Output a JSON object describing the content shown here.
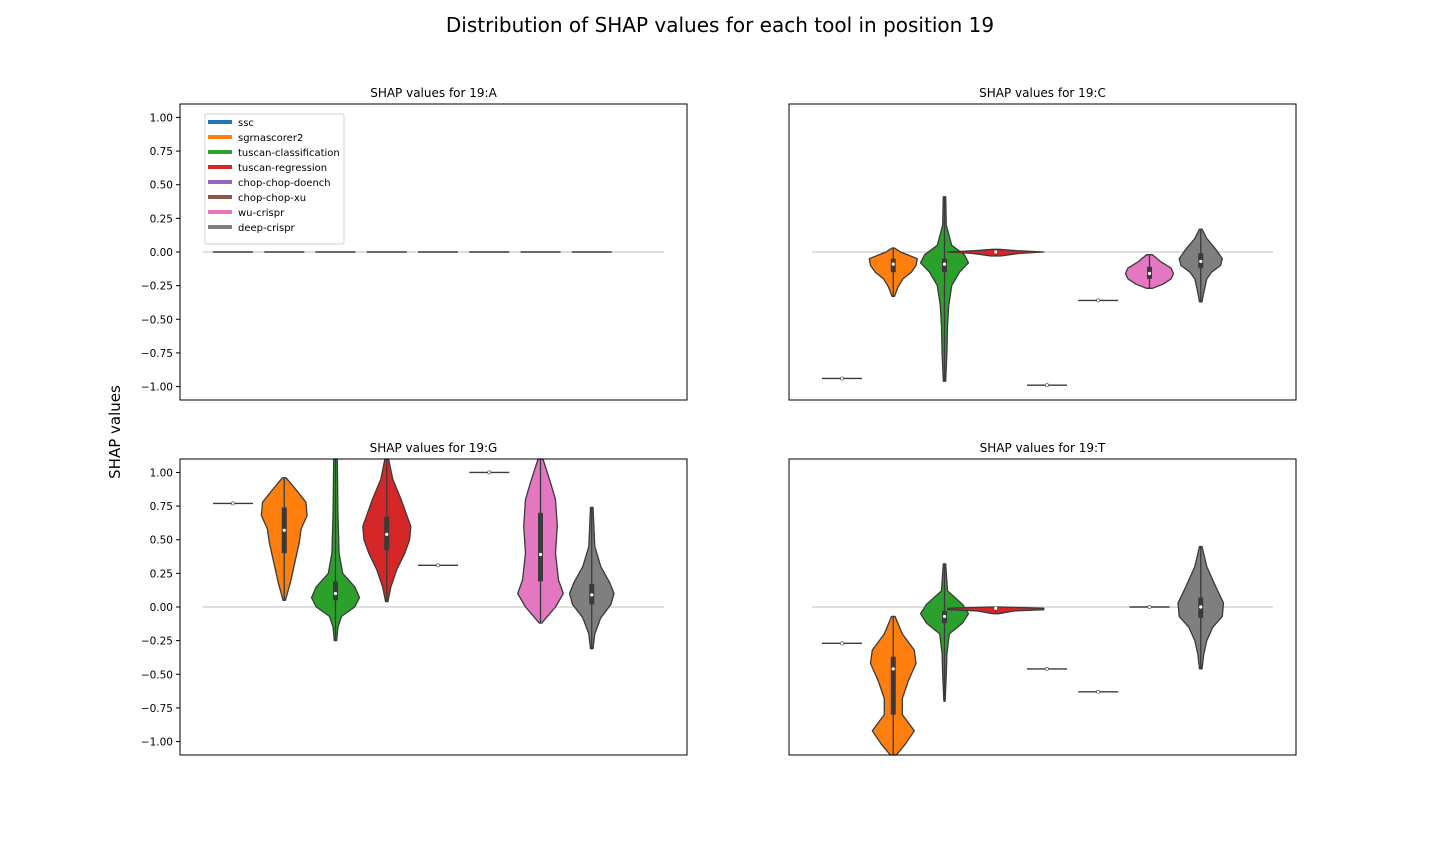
{
  "chart_data": {
    "type": "violin",
    "title": "Distribution of SHAP values for each tool in position 19",
    "ylabel": "SHAP values",
    "ylim": [
      -1.1,
      1.1
    ],
    "yticks": [
      1.0,
      0.75,
      0.5,
      0.25,
      0.0,
      -0.25,
      -0.5,
      -0.75,
      -1.0
    ],
    "ytick_labels": [
      "1.00",
      "0.75",
      "0.50",
      "0.25",
      "0.00",
      "−0.25",
      "−0.50",
      "−0.75",
      "−1.00"
    ],
    "grid": false,
    "legend": {
      "location": "upper-left of first panel",
      "entries": [
        {
          "name": "ssc",
          "color": "#1f77b4"
        },
        {
          "name": "sgrnascorer2",
          "color": "#ff7f0e"
        },
        {
          "name": "tuscan-classification",
          "color": "#2ca02c"
        },
        {
          "name": "tuscan-regression",
          "color": "#d62728"
        },
        {
          "name": "chop-chop-doench",
          "color": "#9467bd"
        },
        {
          "name": "chop-chop-xu",
          "color": "#8c564b"
        },
        {
          "name": "wu-crispr",
          "color": "#e377c2"
        },
        {
          "name": "deep-crispr",
          "color": "#7f7f7f"
        }
      ]
    },
    "panels": [
      {
        "title": "SHAP values for 19:A",
        "show_yticks": true,
        "violins": [
          {
            "tool": "ssc",
            "median": 0.0,
            "q1": 0.0,
            "q3": 0.0,
            "min": 0.0,
            "max": 0.0,
            "shape": []
          },
          {
            "tool": "sgrnascorer2",
            "median": 0.0,
            "q1": 0.0,
            "q3": 0.0,
            "min": 0.0,
            "max": 0.0,
            "shape": []
          },
          {
            "tool": "tuscan-classification",
            "median": 0.0,
            "q1": 0.0,
            "q3": 0.0,
            "min": 0.0,
            "max": 0.0,
            "shape": []
          },
          {
            "tool": "tuscan-regression",
            "median": 0.0,
            "q1": 0.0,
            "q3": 0.0,
            "min": 0.0,
            "max": 0.0,
            "shape": []
          },
          {
            "tool": "chop-chop-doench",
            "median": 0.0,
            "q1": 0.0,
            "q3": 0.0,
            "min": 0.0,
            "max": 0.0,
            "shape": []
          },
          {
            "tool": "chop-chop-xu",
            "median": 0.0,
            "q1": 0.0,
            "q3": 0.0,
            "min": 0.0,
            "max": 0.0,
            "shape": []
          },
          {
            "tool": "wu-crispr",
            "median": 0.0,
            "q1": 0.0,
            "q3": 0.0,
            "min": 0.0,
            "max": 0.0,
            "shape": []
          },
          {
            "tool": "deep-crispr",
            "median": 0.0,
            "q1": 0.0,
            "q3": 0.0,
            "min": 0.0,
            "max": 0.0,
            "shape": []
          }
        ]
      },
      {
        "title": "SHAP values for 19:C",
        "show_yticks": false,
        "violins": [
          {
            "tool": "ssc",
            "median": -0.94,
            "q1": -0.94,
            "q3": -0.94,
            "min": -0.94,
            "max": -0.94,
            "shape": []
          },
          {
            "tool": "sgrnascorer2",
            "median": -0.09,
            "q1": -0.15,
            "q3": -0.05,
            "min": -0.33,
            "max": 0.03,
            "shape": [
              [
                0.03,
                0.02
              ],
              [
                0.0,
                0.12
              ],
              [
                -0.05,
                0.4
              ],
              [
                -0.1,
                0.38
              ],
              [
                -0.15,
                0.3
              ],
              [
                -0.2,
                0.16
              ],
              [
                -0.26,
                0.08
              ],
              [
                -0.33,
                0.02
              ]
            ]
          },
          {
            "tool": "tuscan-classification",
            "median": -0.09,
            "q1": -0.15,
            "q3": -0.05,
            "min": -0.96,
            "max": 0.41,
            "shape": [
              [
                0.41,
                0.02
              ],
              [
                0.2,
                0.03
              ],
              [
                0.05,
                0.12
              ],
              [
                -0.02,
                0.33
              ],
              [
                -0.08,
                0.4
              ],
              [
                -0.15,
                0.25
              ],
              [
                -0.25,
                0.12
              ],
              [
                -0.4,
                0.07
              ],
              [
                -0.55,
                0.05
              ],
              [
                -0.75,
                0.04
              ],
              [
                -0.96,
                0.02
              ]
            ]
          },
          {
            "tool": "tuscan-regression",
            "median": 0.0,
            "q1": -0.01,
            "q3": 0.01,
            "min": -0.03,
            "max": 0.02,
            "shape": [
              [
                0.02,
                0.05
              ],
              [
                0.01,
                0.35
              ],
              [
                0.0,
                0.8
              ],
              [
                -0.01,
                0.4
              ],
              [
                -0.03,
                0.08
              ]
            ]
          },
          {
            "tool": "chop-chop-doench",
            "median": -0.99,
            "q1": -0.99,
            "q3": -0.99,
            "min": -0.99,
            "max": -0.99,
            "shape": []
          },
          {
            "tool": "chop-chop-xu",
            "median": -0.36,
            "q1": -0.36,
            "q3": -0.36,
            "min": -0.36,
            "max": -0.36,
            "shape": []
          },
          {
            "tool": "wu-crispr",
            "median": -0.16,
            "q1": -0.2,
            "q3": -0.11,
            "min": -0.27,
            "max": -0.02,
            "shape": [
              [
                -0.02,
                0.05
              ],
              [
                -0.07,
                0.18
              ],
              [
                -0.12,
                0.36
              ],
              [
                -0.16,
                0.4
              ],
              [
                -0.2,
                0.36
              ],
              [
                -0.24,
                0.22
              ],
              [
                -0.27,
                0.05
              ]
            ]
          },
          {
            "tool": "deep-crispr",
            "median": -0.07,
            "q1": -0.12,
            "q3": -0.01,
            "min": -0.37,
            "max": 0.17,
            "shape": [
              [
                0.17,
                0.02
              ],
              [
                0.1,
                0.1
              ],
              [
                0.02,
                0.25
              ],
              [
                -0.05,
                0.36
              ],
              [
                -0.1,
                0.33
              ],
              [
                -0.15,
                0.18
              ],
              [
                -0.2,
                0.1
              ],
              [
                -0.3,
                0.05
              ],
              [
                -0.37,
                0.02
              ]
            ]
          }
        ]
      },
      {
        "title": "SHAP values for 19:G",
        "show_yticks": true,
        "violins": [
          {
            "tool": "ssc",
            "median": 0.77,
            "q1": 0.77,
            "q3": 0.77,
            "min": 0.77,
            "max": 0.77,
            "shape": []
          },
          {
            "tool": "sgrnascorer2",
            "median": 0.57,
            "q1": 0.4,
            "q3": 0.74,
            "min": 0.05,
            "max": 0.96,
            "shape": [
              [
                0.96,
                0.03
              ],
              [
                0.88,
                0.18
              ],
              [
                0.78,
                0.36
              ],
              [
                0.68,
                0.38
              ],
              [
                0.58,
                0.28
              ],
              [
                0.48,
                0.25
              ],
              [
                0.38,
                0.2
              ],
              [
                0.28,
                0.15
              ],
              [
                0.18,
                0.1
              ],
              [
                0.05,
                0.02
              ]
            ]
          },
          {
            "tool": "tuscan-classification",
            "median": 0.1,
            "q1": 0.05,
            "q3": 0.19,
            "min": -0.25,
            "max": 1.1,
            "shape": [
              [
                1.1,
                0.03
              ],
              [
                0.7,
                0.04
              ],
              [
                0.4,
                0.06
              ],
              [
                0.25,
                0.12
              ],
              [
                0.15,
                0.32
              ],
              [
                0.07,
                0.4
              ],
              [
                0.0,
                0.32
              ],
              [
                -0.07,
                0.1
              ],
              [
                -0.15,
                0.04
              ],
              [
                -0.25,
                0.02
              ]
            ]
          },
          {
            "tool": "tuscan-regression",
            "median": 0.54,
            "q1": 0.42,
            "q3": 0.67,
            "min": 0.04,
            "max": 1.1,
            "shape": [
              [
                1.1,
                0.03
              ],
              [
                0.95,
                0.1
              ],
              [
                0.8,
                0.24
              ],
              [
                0.7,
                0.32
              ],
              [
                0.6,
                0.4
              ],
              [
                0.5,
                0.38
              ],
              [
                0.4,
                0.3
              ],
              [
                0.28,
                0.17
              ],
              [
                0.15,
                0.07
              ],
              [
                0.04,
                0.02
              ]
            ]
          },
          {
            "tool": "chop-chop-doench",
            "median": 0.31,
            "q1": 0.31,
            "q3": 0.31,
            "min": 0.31,
            "max": 0.31,
            "shape": []
          },
          {
            "tool": "chop-chop-xu",
            "median": 1.0,
            "q1": 1.0,
            "q3": 1.0,
            "min": 1.0,
            "max": 1.0,
            "shape": []
          },
          {
            "tool": "wu-crispr",
            "median": 0.39,
            "q1": 0.19,
            "q3": 0.7,
            "min": -0.12,
            "max": 1.1,
            "shape": [
              [
                1.1,
                0.04
              ],
              [
                0.95,
                0.15
              ],
              [
                0.8,
                0.25
              ],
              [
                0.6,
                0.28
              ],
              [
                0.4,
                0.25
              ],
              [
                0.2,
                0.3
              ],
              [
                0.1,
                0.38
              ],
              [
                0.0,
                0.25
              ],
              [
                -0.12,
                0.02
              ]
            ]
          },
          {
            "tool": "deep-crispr",
            "median": 0.09,
            "q1": 0.02,
            "q3": 0.17,
            "min": -0.31,
            "max": 0.74,
            "shape": [
              [
                0.74,
                0.02
              ],
              [
                0.45,
                0.05
              ],
              [
                0.3,
                0.15
              ],
              [
                0.18,
                0.3
              ],
              [
                0.1,
                0.37
              ],
              [
                0.02,
                0.32
              ],
              [
                -0.08,
                0.15
              ],
              [
                -0.2,
                0.05
              ],
              [
                -0.31,
                0.02
              ]
            ]
          }
        ]
      },
      {
        "title": "SHAP values for 19:T",
        "show_yticks": false,
        "violins": [
          {
            "tool": "ssc",
            "median": -0.27,
            "q1": -0.27,
            "q3": -0.27,
            "min": -0.27,
            "max": -0.27,
            "shape": []
          },
          {
            "tool": "sgrnascorer2",
            "median": -0.46,
            "q1": -0.8,
            "q3": -0.37,
            "min": -1.1,
            "max": -0.07,
            "shape": [
              [
                -0.07,
                0.03
              ],
              [
                -0.2,
                0.15
              ],
              [
                -0.32,
                0.35
              ],
              [
                -0.42,
                0.38
              ],
              [
                -0.55,
                0.25
              ],
              [
                -0.68,
                0.15
              ],
              [
                -0.8,
                0.15
              ],
              [
                -0.92,
                0.35
              ],
              [
                -1.02,
                0.2
              ],
              [
                -1.1,
                0.05
              ]
            ]
          },
          {
            "tool": "tuscan-classification",
            "median": -0.07,
            "q1": -0.12,
            "q3": -0.03,
            "min": -0.7,
            "max": 0.32,
            "shape": [
              [
                0.32,
                0.02
              ],
              [
                0.12,
                0.05
              ],
              [
                0.02,
                0.3
              ],
              [
                -0.05,
                0.4
              ],
              [
                -0.12,
                0.3
              ],
              [
                -0.2,
                0.08
              ],
              [
                -0.35,
                0.04
              ],
              [
                -0.5,
                0.03
              ],
              [
                -0.7,
                0.01
              ]
            ]
          },
          {
            "tool": "tuscan-regression",
            "median": -0.01,
            "q1": -0.02,
            "q3": -0.01,
            "min": -0.05,
            "max": 0.0,
            "shape": [
              [
                0.0,
                0.1
              ],
              [
                -0.01,
                0.8
              ],
              [
                -0.02,
                0.8
              ],
              [
                -0.03,
                0.3
              ],
              [
                -0.05,
                0.05
              ]
            ]
          },
          {
            "tool": "chop-chop-doench",
            "median": -0.46,
            "q1": -0.46,
            "q3": -0.46,
            "min": -0.46,
            "max": -0.46,
            "shape": []
          },
          {
            "tool": "chop-chop-xu",
            "median": -0.63,
            "q1": -0.63,
            "q3": -0.63,
            "min": -0.63,
            "max": -0.63,
            "shape": []
          },
          {
            "tool": "wu-crispr",
            "median": 0.0,
            "q1": 0.0,
            "q3": 0.0,
            "min": 0.0,
            "max": 0.0,
            "shape": []
          },
          {
            "tool": "deep-crispr",
            "median": -0.0,
            "q1": -0.08,
            "q3": 0.07,
            "min": -0.46,
            "max": 0.45,
            "shape": [
              [
                0.45,
                0.02
              ],
              [
                0.3,
                0.1
              ],
              [
                0.15,
                0.25
              ],
              [
                0.03,
                0.38
              ],
              [
                -0.07,
                0.36
              ],
              [
                -0.15,
                0.2
              ],
              [
                -0.25,
                0.1
              ],
              [
                -0.35,
                0.05
              ],
              [
                -0.46,
                0.02
              ]
            ]
          }
        ]
      }
    ]
  }
}
